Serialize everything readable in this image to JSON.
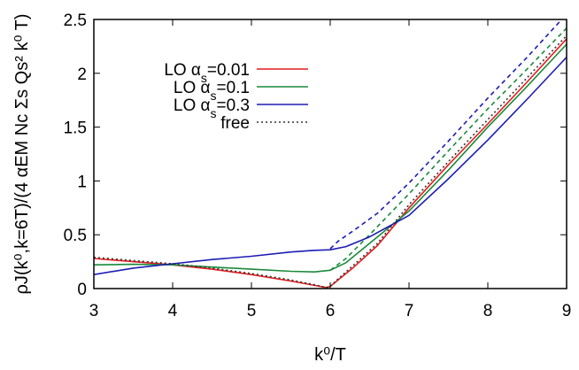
{
  "chart_data": {
    "type": "line",
    "xlabel": "k⁰/T",
    "ylabel": "ρJ(k⁰,k=6T)/(4 αEM Nc Σs Qs² k⁰ T)",
    "xlim": [
      3,
      9
    ],
    "ylim": [
      0,
      2.5
    ],
    "xticks": [
      "3",
      "4",
      "5",
      "6",
      "7",
      "8",
      "9"
    ],
    "yticks": [
      "0",
      "0.5",
      "1",
      "1.5",
      "2",
      "2.5"
    ],
    "grid": false,
    "legend_position": "top-left",
    "legend": [
      {
        "label_prefix": "LO α",
        "label_sub": "s",
        "label_suffix": "=0.01",
        "color": "#e41a1c",
        "style": "solid"
      },
      {
        "label_prefix": "LO α",
        "label_sub": "s",
        "label_suffix": "=0.1",
        "color": "#1b8a3c",
        "style": "solid"
      },
      {
        "label_prefix": "LO α",
        "label_sub": "s",
        "label_suffix": "=0.3",
        "color": "#1c1cb4",
        "style": "solid"
      },
      {
        "label_prefix": "free",
        "label_sub": "",
        "label_suffix": "",
        "color": "#333333",
        "style": "dotted"
      }
    ],
    "series": [
      {
        "name": "LO αs=0.01",
        "color": "#e41a1c",
        "dash": "",
        "x": [
          3.0,
          3.5,
          4.0,
          4.5,
          5.0,
          5.5,
          5.8,
          5.95,
          6.0,
          6.1,
          6.3,
          6.6,
          7.0,
          7.5,
          8.0,
          8.5,
          9.0
        ],
        "y": [
          0.28,
          0.25,
          0.22,
          0.18,
          0.13,
          0.07,
          0.03,
          0.01,
          0.02,
          0.08,
          0.2,
          0.4,
          0.75,
          1.15,
          1.53,
          1.92,
          2.32
        ]
      },
      {
        "name": "LO αs=0.1",
        "color": "#1b8a3c",
        "dash": "",
        "x": [
          3.0,
          3.5,
          4.0,
          4.5,
          5.0,
          5.5,
          5.8,
          6.0,
          6.2,
          6.5,
          7.0,
          7.5,
          8.0,
          8.5,
          9.0
        ],
        "y": [
          0.22,
          0.225,
          0.22,
          0.2,
          0.18,
          0.16,
          0.155,
          0.17,
          0.24,
          0.42,
          0.72,
          1.1,
          1.5,
          1.88,
          2.27
        ]
      },
      {
        "name": "LO αs=0.1 dashed",
        "color": "#1b8a3c",
        "dash": "5,4",
        "x": [
          6.0,
          6.2,
          6.5,
          7.0,
          7.5,
          8.0,
          8.5,
          9.0
        ],
        "y": [
          0.17,
          0.28,
          0.5,
          0.88,
          1.28,
          1.67,
          2.04,
          2.42
        ]
      },
      {
        "name": "LO αs=0.3",
        "color": "#1c1cb4",
        "dash": "",
        "x": [
          3.0,
          3.5,
          4.0,
          4.5,
          5.0,
          5.5,
          5.8,
          6.0,
          6.2,
          6.5,
          7.0,
          7.5,
          8.0,
          8.5,
          9.0
        ],
        "y": [
          0.13,
          0.19,
          0.23,
          0.27,
          0.3,
          0.34,
          0.355,
          0.36,
          0.39,
          0.48,
          0.68,
          1.02,
          1.38,
          1.76,
          2.15
        ]
      },
      {
        "name": "LO αs=0.3 dashed",
        "color": "#1c1cb4",
        "dash": "5,4",
        "x": [
          6.0,
          6.1,
          6.3,
          6.6,
          7.0,
          7.5,
          8.0,
          8.5,
          9.0
        ],
        "y": [
          0.37,
          0.44,
          0.54,
          0.7,
          0.98,
          1.37,
          1.77,
          2.15,
          2.55
        ]
      },
      {
        "name": "free",
        "color": "#333333",
        "dash": "2,3",
        "x": [
          3.0,
          3.5,
          4.0,
          4.5,
          5.0,
          5.5,
          5.8,
          5.95,
          6.0,
          6.1,
          6.3,
          6.6,
          7.0,
          7.5,
          8.0,
          8.5,
          9.0
        ],
        "y": [
          0.29,
          0.26,
          0.23,
          0.19,
          0.14,
          0.08,
          0.035,
          0.01,
          0.02,
          0.09,
          0.22,
          0.42,
          0.78,
          1.18,
          1.57,
          1.96,
          2.35
        ]
      }
    ]
  }
}
